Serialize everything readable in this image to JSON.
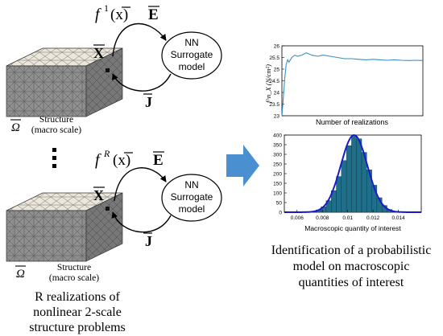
{
  "top_block": {
    "f_label": "f",
    "f_sup": "1",
    "f_arg": "(x)",
    "E_label": "E",
    "X_label": "X",
    "J_label": "J",
    "nn_lines": [
      "NN",
      "Surrogate",
      "model"
    ],
    "omega_label": "Ω",
    "structure_lines": [
      "Structure",
      "(macro scale)"
    ]
  },
  "ellipsis": "⋮",
  "bottom_block": {
    "f_label": "f",
    "f_sup": "R",
    "f_arg": "(x)",
    "E_label": "E",
    "X_label": "X",
    "J_label": "J",
    "nn_lines": [
      "NN",
      "Surrogate",
      "model"
    ],
    "omega_label": "Ω",
    "structure_lines": [
      "Structure",
      "(macro scale)"
    ]
  },
  "left_caption_lines": [
    "R realizations of",
    "nonlinear 2-scale",
    "structure problems"
  ],
  "right_caption_lines": [
    "Identification of a probabilistic",
    "model on macroscopic",
    "quantities of interest"
  ],
  "colors": {
    "arrow": "#4a90d0",
    "line_series": "#3a8fc4",
    "hist_bar": "#1f6f8b",
    "hist_curve": "#1a1acc",
    "mesh_top": "#ece7da",
    "mesh_side": "#8f8f8f"
  },
  "chart_data": [
    {
      "type": "line",
      "xlabel": "Number of realizations",
      "ylabel": "f^n_X (N/cm²)",
      "ylim": [
        23,
        26
      ],
      "yticks": [
        "23",
        "23.5",
        "24",
        "24.5",
        "25",
        "25.5",
        "26"
      ],
      "series": [
        {
          "x": [
            1,
            2,
            3,
            4,
            5,
            6,
            8,
            10,
            12,
            15,
            18,
            22,
            26,
            30,
            35,
            40,
            45,
            50,
            55,
            60,
            65,
            70,
            75,
            80,
            85,
            90,
            95,
            100
          ],
          "values": [
            23.0,
            23.8,
            24.6,
            25.2,
            25.4,
            25.3,
            25.5,
            25.6,
            25.55,
            25.6,
            25.7,
            25.6,
            25.55,
            25.6,
            25.55,
            25.5,
            25.45,
            25.45,
            25.42,
            25.4,
            25.42,
            25.4,
            25.38,
            25.4,
            25.38,
            25.37,
            25.38,
            25.37
          ]
        }
      ]
    },
    {
      "type": "bar",
      "xlabel": "Macroscopic quantity of interest",
      "xlim": [
        0.005,
        0.0158
      ],
      "ylim": [
        0,
        400
      ],
      "xticks": [
        "0.006",
        "0.008",
        "0.01",
        "0.012",
        "0.014"
      ],
      "yticks": [
        "0",
        "50",
        "100",
        "150",
        "200",
        "250",
        "300",
        "350",
        "400"
      ],
      "bins": [
        0.0069,
        0.0073,
        0.0077,
        0.0081,
        0.0085,
        0.0089,
        0.0093,
        0.0097,
        0.0101,
        0.0105,
        0.0109,
        0.0113,
        0.0117,
        0.0121,
        0.0125,
        0.0129,
        0.0133,
        0.0137,
        0.0141
      ],
      "values": [
        2,
        5,
        12,
        28,
        60,
        112,
        185,
        268,
        345,
        398,
        380,
        310,
        220,
        140,
        75,
        35,
        14,
        5,
        2
      ],
      "fit_curve": {
        "mean": 0.0105,
        "std": 0.00105,
        "peak": 400
      }
    }
  ]
}
